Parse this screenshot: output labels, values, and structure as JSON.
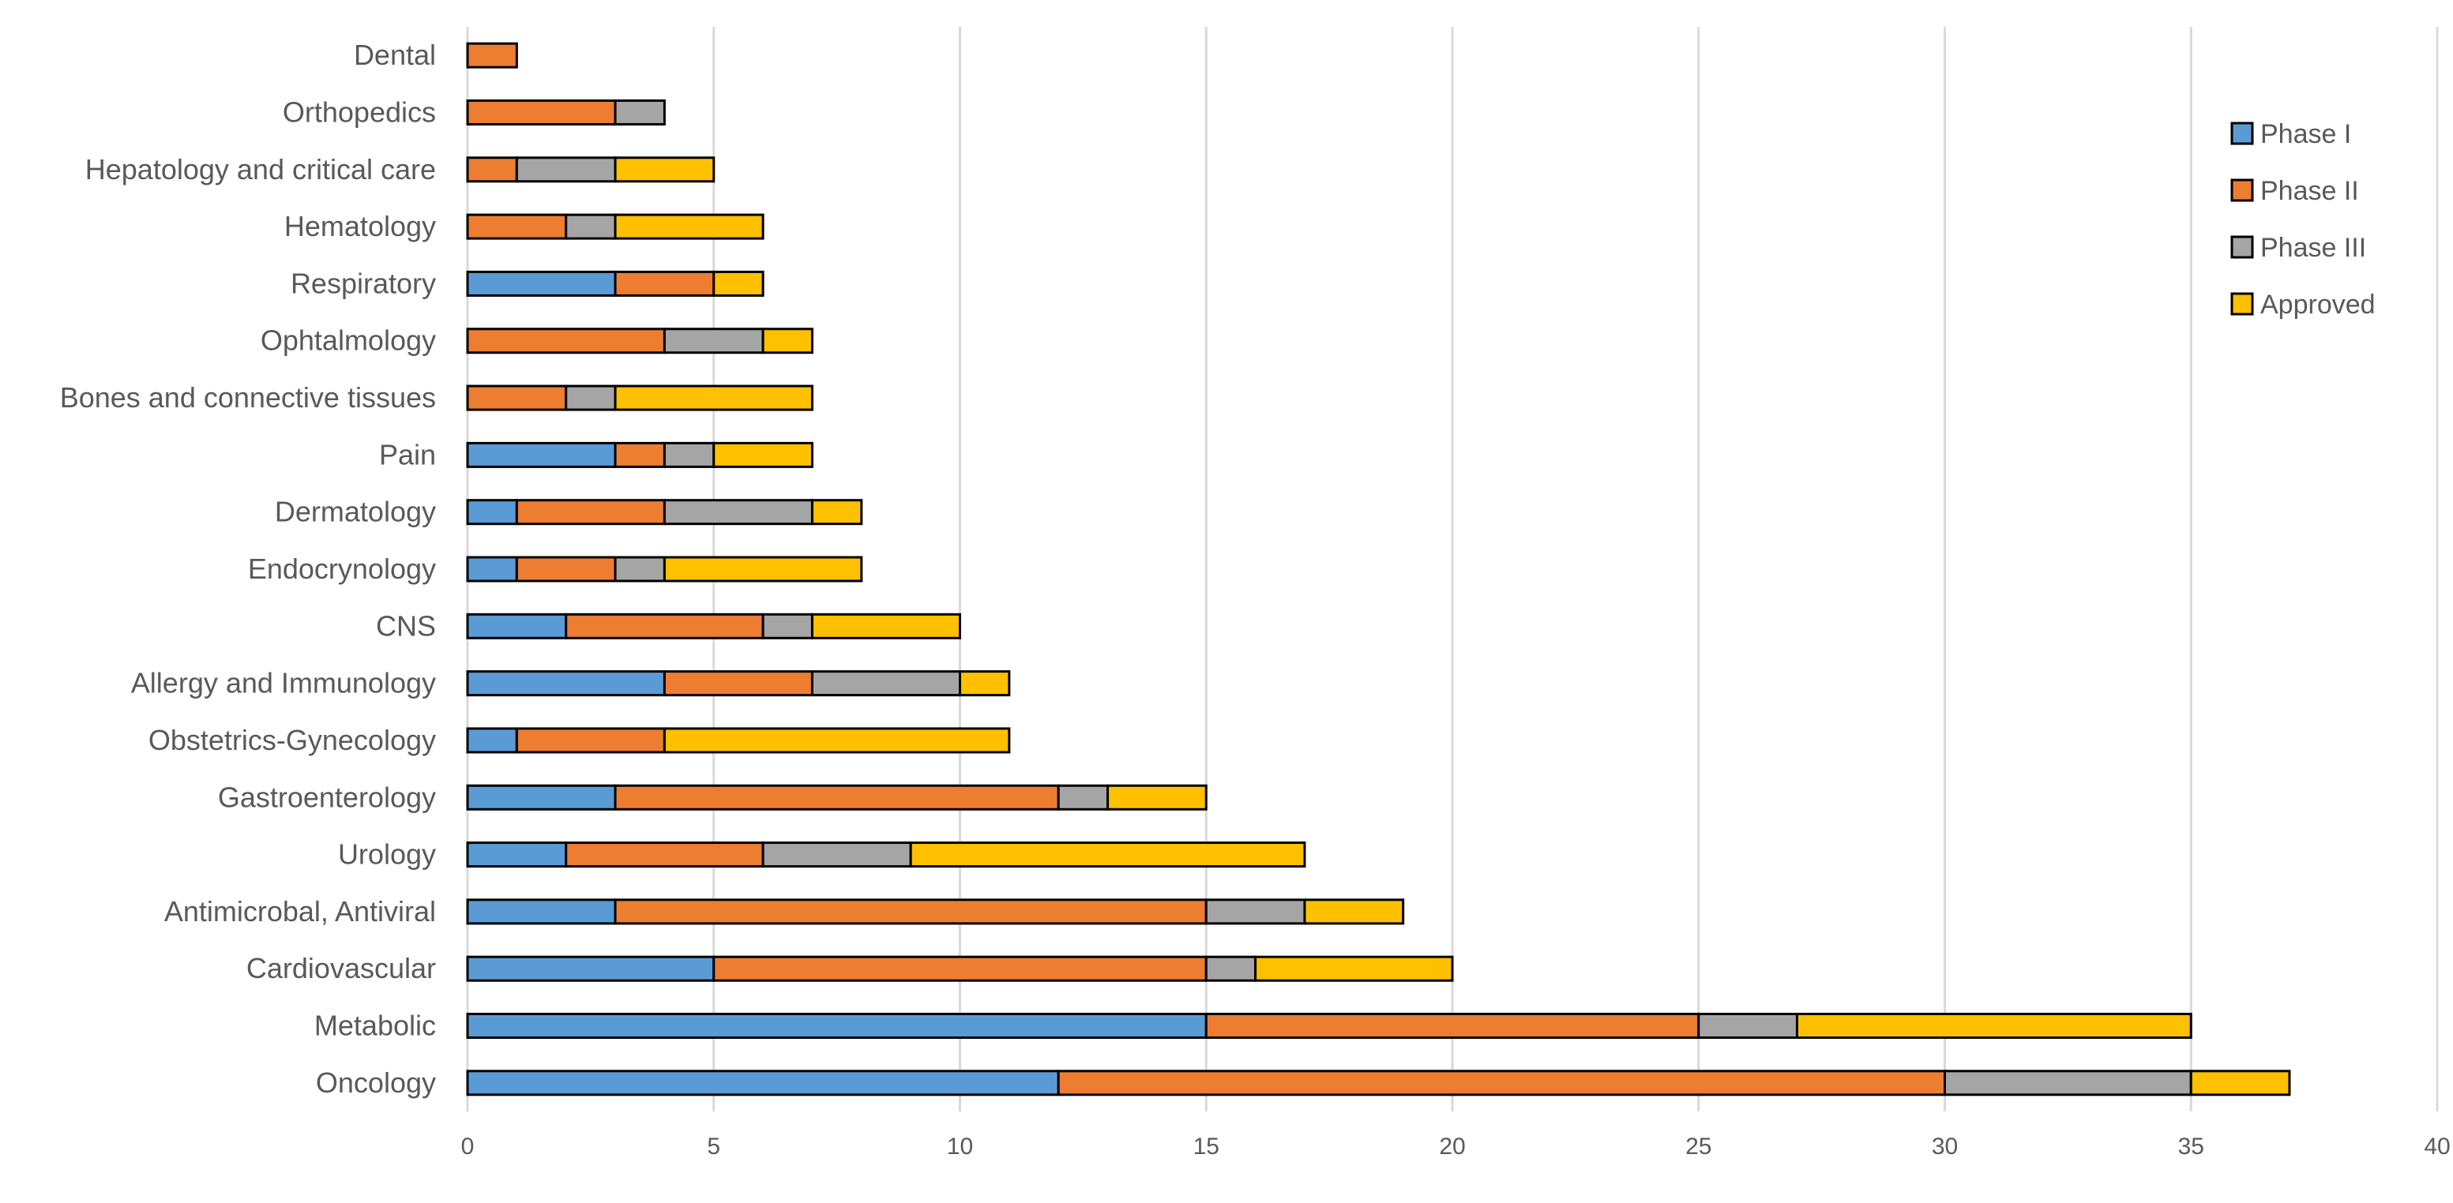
{
  "chart_data": {
    "type": "bar",
    "orientation": "horizontal",
    "stacked": true,
    "title": "",
    "xlabel": "",
    "ylabel": "",
    "xlim": [
      0,
      40
    ],
    "x_ticks": [
      0,
      5,
      10,
      15,
      20,
      25,
      30,
      35,
      40
    ],
    "grid": "vertical",
    "legend_position": "top-right",
    "categories": [
      "Dental",
      "Orthopedics",
      "Hepatology and critical care",
      "Hematology",
      "Respiratory",
      "Ophtalmology",
      "Bones and connective tissues",
      "Pain",
      "Dermatology",
      "Endocrynology",
      "CNS",
      "Allergy and Immunology",
      "Obstetrics-Gynecology",
      "Gastroenterology",
      "Urology",
      "Antimicrobal, Antiviral",
      "Cardiovascular",
      "Metabolic",
      "Oncology"
    ],
    "series": [
      {
        "name": "Phase I",
        "color": "#5b9bd5",
        "values": [
          0,
          0,
          0,
          0,
          3,
          0,
          0,
          3,
          1,
          1,
          2,
          4,
          1,
          3,
          2,
          3,
          5,
          15,
          12
        ]
      },
      {
        "name": "Phase II",
        "color": "#ed7d31",
        "values": [
          1,
          3,
          1,
          2,
          2,
          4,
          2,
          1,
          3,
          2,
          4,
          3,
          3,
          9,
          4,
          12,
          10,
          10,
          18
        ]
      },
      {
        "name": "Phase III",
        "color": "#a5a5a5",
        "values": [
          0,
          1,
          2,
          1,
          0,
          2,
          1,
          1,
          3,
          1,
          1,
          3,
          0,
          1,
          3,
          2,
          1,
          2,
          5
        ]
      },
      {
        "name": "Approved",
        "color": "#ffc000",
        "values": [
          0,
          0,
          2,
          3,
          1,
          1,
          4,
          2,
          1,
          4,
          3,
          1,
          7,
          2,
          8,
          2,
          4,
          8,
          2
        ]
      }
    ]
  }
}
